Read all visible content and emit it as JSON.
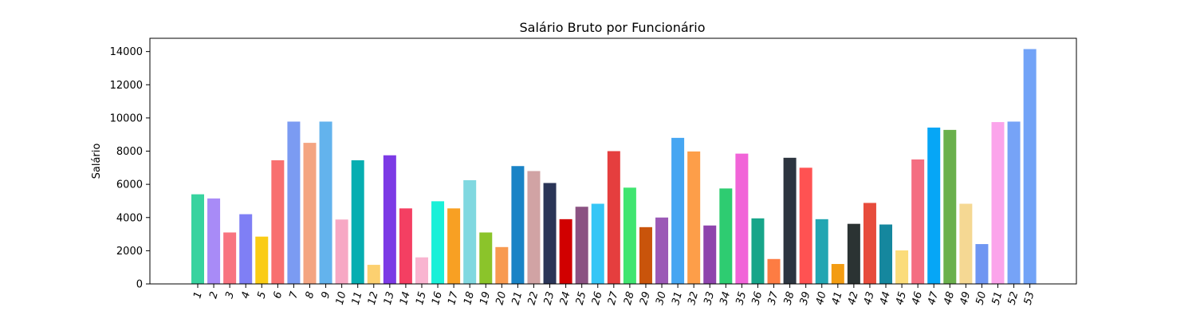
{
  "chart_data": {
    "type": "bar",
    "title": "Salário Bruto por Funcionário",
    "xlabel": "",
    "ylabel": "Salário",
    "ylim": [
      0,
      14800
    ],
    "yticks": [
      0,
      2000,
      4000,
      6000,
      8000,
      10000,
      12000,
      14000
    ],
    "grid": false,
    "categories": [
      "1",
      "2",
      "3",
      "4",
      "5",
      "6",
      "7",
      "8",
      "9",
      "10",
      "11",
      "12",
      "13",
      "14",
      "15",
      "16",
      "17",
      "18",
      "19",
      "20",
      "21",
      "22",
      "23",
      "24",
      "25",
      "26",
      "27",
      "28",
      "29",
      "30",
      "31",
      "32",
      "33",
      "34",
      "35",
      "36",
      "37",
      "38",
      "39",
      "40",
      "41",
      "42",
      "43",
      "44",
      "45",
      "46",
      "47",
      "48",
      "49",
      "50",
      "51",
      "52",
      "53"
    ],
    "values": [
      5400,
      5150,
      3100,
      4200,
      2850,
      7450,
      9780,
      8500,
      9780,
      3880,
      7450,
      1150,
      7750,
      4550,
      1600,
      4980,
      4550,
      6250,
      3100,
      2220,
      7100,
      6800,
      6080,
      3900,
      4650,
      4830,
      8000,
      5800,
      3420,
      4000,
      8800,
      7980,
      3520,
      5750,
      7850,
      3950,
      1500,
      7600,
      7000,
      3900,
      1200,
      3620,
      4880,
      3580,
      2020,
      7500,
      9420,
      9280,
      4830,
      2400,
      9750,
      9780,
      14150
    ],
    "colors": [
      "#38d39f",
      "#a88bf7",
      "#f87480",
      "#7f7ff5",
      "#facc15",
      "#f87070",
      "#7b9bf2",
      "#f4a582",
      "#63b3ed",
      "#f7a8c4",
      "#06aeb1",
      "#fcd070",
      "#7c3ae5",
      "#f43f62",
      "#f9b4d0",
      "#1af0d8",
      "#f8a023",
      "#80d8e0",
      "#8bc42a",
      "#f89a50",
      "#1a83c6",
      "#d1a3a4",
      "#2a3557",
      "#d10000",
      "#8b5282",
      "#36c6f6",
      "#e53e3e",
      "#40e570",
      "#c9540b",
      "#9b59b6",
      "#46a6f2",
      "#fd9e49",
      "#8e44ad",
      "#2ecc71",
      "#f164d8",
      "#17a589",
      "#fd7c43",
      "#2d3540",
      "#ff5252",
      "#23a6b2",
      "#f39c12",
      "#2b3333",
      "#e74c3c",
      "#15879e",
      "#fbdc7a",
      "#f46e81",
      "#06a6f6",
      "#6ab04c",
      "#f5d893",
      "#6f96f2",
      "#fba4eb",
      "#76a3f7",
      "#72a3f7"
    ]
  }
}
